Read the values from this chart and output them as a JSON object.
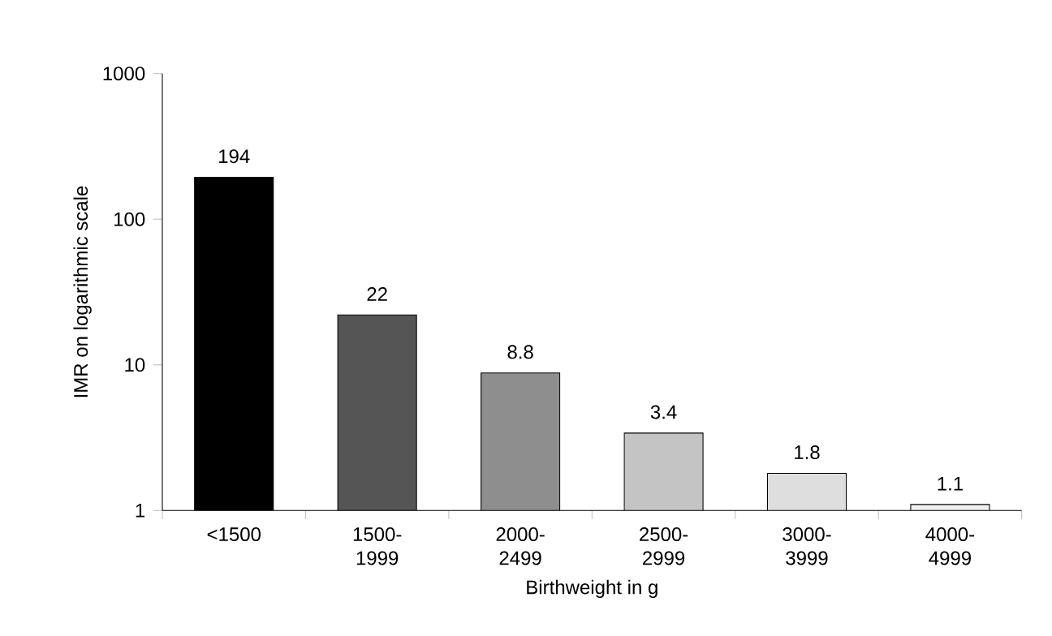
{
  "chart_data": {
    "type": "bar",
    "xlabel": "Birthweight in g",
    "ylabel": "IMR on logarithmic scale",
    "categories": [
      "<1500",
      "1500-1999",
      "2000-2499",
      "2500-2999",
      "3000-3999",
      "4000-4999"
    ],
    "values": [
      194,
      22,
      8.8,
      3.4,
      1.8,
      1.1
    ],
    "colors": [
      "#000000",
      "#555555",
      "#8e8e8e",
      "#c4c4c4",
      "#dedede",
      "#f0f0f0"
    ],
    "log": "y",
    "ylim": [
      1,
      1000
    ],
    "yticks": [
      1,
      10,
      100,
      1000
    ],
    "data_labels": true
  }
}
